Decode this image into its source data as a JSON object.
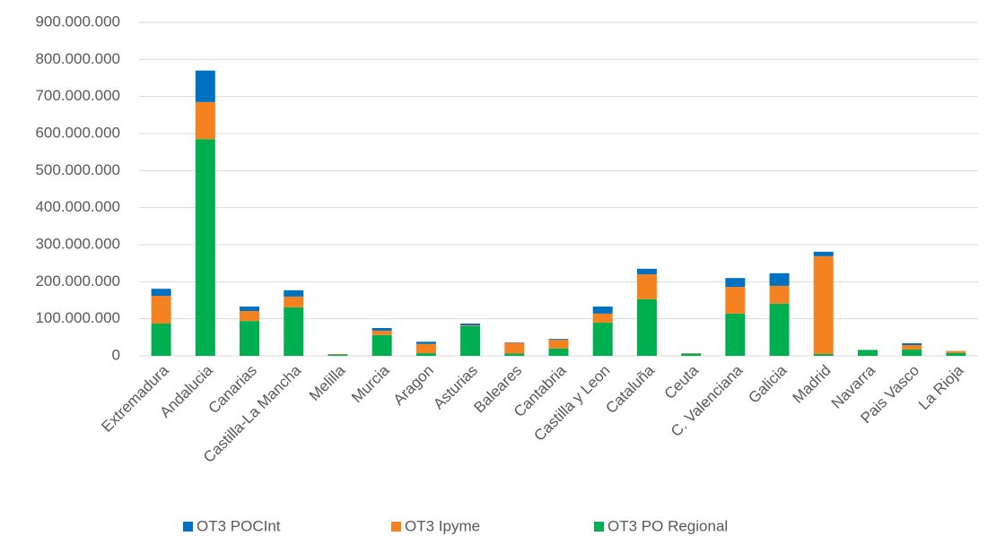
{
  "chart_data": {
    "type": "stacked_bar",
    "categories": [
      "Extremadura",
      "Andalucia",
      "Canarias",
      "Castilla-La Mancha",
      "Melilla",
      "Murcia",
      "Aragon",
      "Asturias",
      "Baleares",
      "Cantabria",
      "Castilla y Leon",
      "Cataluña",
      "Ceuta",
      "C. Valenciana",
      "Galicia",
      "Madrid",
      "Navarra",
      "Pais Vasco",
      "La Rioja"
    ],
    "series": [
      {
        "name": "OT3 PO Regional",
        "color": "#00b050",
        "values": [
          87000000,
          585000000,
          94000000,
          131000000,
          4000000,
          56000000,
          7000000,
          80000000,
          6000000,
          20000000,
          90000000,
          153000000,
          6000000,
          114000000,
          141000000,
          5000000,
          16000000,
          17000000,
          8000000
        ]
      },
      {
        "name": "OT3 Ipyme",
        "color": "#f58220",
        "values": [
          75000000,
          100000000,
          27000000,
          29000000,
          1000000,
          12000000,
          25000000,
          2000000,
          29000000,
          24000000,
          24000000,
          67000000,
          1000000,
          72000000,
          48000000,
          264000000,
          0,
          12000000,
          5000000
        ]
      },
      {
        "name": "OT3 POCInt",
        "color": "#0070c0",
        "values": [
          19000000,
          85000000,
          12000000,
          17000000,
          0,
          7000000,
          6000000,
          5000000,
          1000000,
          2000000,
          19000000,
          15000000,
          0,
          24000000,
          34000000,
          12000000,
          0,
          5000000,
          0
        ]
      }
    ],
    "legend_order": [
      2,
      1,
      0
    ],
    "ylim": [
      0,
      900000000
    ],
    "yticks": [
      0,
      {
        "value": 100000000,
        "label": "100.000.000"
      },
      {
        "value": 200000000,
        "label": "200.000.000"
      },
      {
        "value": 300000000,
        "label": "300.000.000"
      },
      {
        "value": 400000000,
        "label": "400.000.000"
      },
      {
        "value": 500000000,
        "label": "500.000.000"
      },
      {
        "value": 600000000,
        "label": "600.000.000"
      },
      {
        "value": 700000000,
        "label": "700.000.000"
      },
      {
        "value": 800000000,
        "label": "800.000.000"
      },
      {
        "value": 900000000,
        "label": "900.000.000"
      }
    ],
    "grid": true,
    "legend": "bottom"
  }
}
